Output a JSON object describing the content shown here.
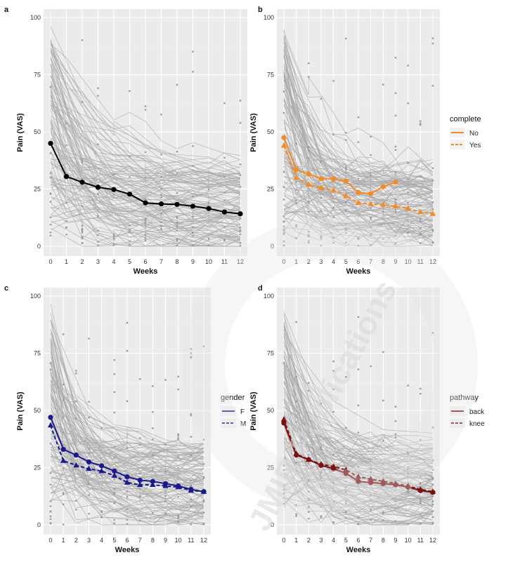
{
  "chart_data": [
    {
      "panel": "a",
      "type": "line",
      "xlabel": "Weeks",
      "ylabel": "Pain (VAS)",
      "x_ticks": [
        0,
        1,
        2,
        3,
        4,
        5,
        6,
        7,
        8,
        9,
        10,
        11,
        12
      ],
      "y_ticks": [
        0,
        25,
        50,
        75,
        100
      ],
      "xlim": [
        0,
        12
      ],
      "ylim": [
        0,
        100
      ],
      "grid": true,
      "legend": null,
      "series": [
        {
          "color": "#000000",
          "dash": false,
          "marker": "circle",
          "x": [
            0,
            1,
            2,
            3,
            4,
            5,
            6,
            7,
            8,
            9,
            10,
            11,
            12
          ],
          "values": [
            45,
            30.5,
            28,
            25.8,
            24.8,
            22.8,
            19,
            18.5,
            18.3,
            17.5,
            16.5,
            15,
            14.2
          ]
        }
      ]
    },
    {
      "panel": "b",
      "type": "line",
      "xlabel": "Weeks",
      "ylabel": "Pain (VAS)",
      "x_ticks": [
        0,
        1,
        2,
        3,
        4,
        5,
        6,
        7,
        8,
        9,
        10,
        11,
        12
      ],
      "y_ticks": [
        0,
        25,
        50,
        75,
        100
      ],
      "xlim": [
        0,
        12
      ],
      "ylim": [
        0,
        100
      ],
      "grid": true,
      "legend": {
        "title": "complete",
        "position": "right"
      },
      "series": [
        {
          "name": "No",
          "color": "#F28C28",
          "dash": false,
          "marker": "circle",
          "x": [
            0,
            1,
            2,
            3,
            4,
            5,
            6,
            7,
            8,
            9
          ],
          "values": [
            47.5,
            33.5,
            31.5,
            29.5,
            29.5,
            28.5,
            23.5,
            23,
            26,
            28
          ]
        },
        {
          "name": "Yes",
          "color": "#F28C28",
          "dash": true,
          "marker": "triangle",
          "x": [
            0,
            1,
            2,
            3,
            4,
            5,
            6,
            7,
            8,
            9,
            10,
            11,
            12
          ],
          "values": [
            44,
            30,
            27,
            25.5,
            24.5,
            22,
            19,
            18.5,
            18.2,
            17.5,
            16.5,
            15,
            14.2
          ]
        }
      ]
    },
    {
      "panel": "c",
      "type": "line",
      "xlabel": "Weeks",
      "ylabel": "Pain (VAS)",
      "x_ticks": [
        0,
        1,
        2,
        3,
        4,
        5,
        6,
        7,
        8,
        9,
        10,
        11,
        12
      ],
      "y_ticks": [
        0,
        25,
        50,
        75,
        100
      ],
      "xlim": [
        0,
        12
      ],
      "ylim": [
        0,
        100
      ],
      "grid": true,
      "legend": {
        "title": "gender",
        "position": "right"
      },
      "series": [
        {
          "name": "F",
          "color": "#1a1a8c",
          "dash": false,
          "marker": "circle",
          "x": [
            0,
            1,
            2,
            3,
            4,
            5,
            6,
            7,
            8,
            9,
            10,
            11,
            12
          ],
          "values": [
            47,
            33,
            30.5,
            27.5,
            25.8,
            23.5,
            21,
            19.5,
            19,
            18,
            17,
            15.5,
            14.5
          ]
        },
        {
          "name": "M",
          "color": "#1a1a8c",
          "dash": true,
          "marker": "triangle",
          "x": [
            0,
            1,
            2,
            3,
            4,
            5,
            6,
            7,
            8,
            9,
            10,
            11,
            12
          ],
          "values": [
            43.5,
            28,
            26,
            24.5,
            23.5,
            21.5,
            18.5,
            17.5,
            17.5,
            17,
            16.5,
            15,
            14.5
          ]
        }
      ]
    },
    {
      "panel": "d",
      "type": "line",
      "xlabel": "Weeks",
      "ylabel": "Pain (VAS)",
      "x_ticks": [
        0,
        1,
        2,
        3,
        4,
        5,
        6,
        7,
        8,
        9,
        10,
        11,
        12
      ],
      "y_ticks": [
        0,
        25,
        50,
        75,
        100
      ],
      "xlim": [
        0,
        12
      ],
      "ylim": [
        0,
        100
      ],
      "grid": true,
      "legend": {
        "title": "pathway",
        "position": "right"
      },
      "series": [
        {
          "name": "back",
          "color": "#7a1010",
          "dash": false,
          "marker": "circle",
          "x": [
            0,
            1,
            2,
            3,
            4,
            5,
            6,
            7,
            8,
            9,
            10,
            11,
            12
          ],
          "values": [
            44.5,
            30.5,
            28.5,
            26,
            24.5,
            22.5,
            19,
            18.5,
            18,
            17.5,
            16.5,
            15,
            14.2
          ]
        },
        {
          "name": "knee",
          "color": "#7a1010",
          "dash": true,
          "marker": "triangle",
          "x": [
            0,
            1,
            2,
            3,
            4,
            5,
            6,
            7,
            8,
            9,
            10,
            11,
            12
          ],
          "values": [
            46,
            31,
            28.5,
            26.5,
            25.5,
            24,
            21,
            20,
            19,
            18,
            17,
            15.5,
            14.5
          ]
        }
      ]
    }
  ],
  "watermark": {
    "publisher_text": "JMIR Publications"
  }
}
